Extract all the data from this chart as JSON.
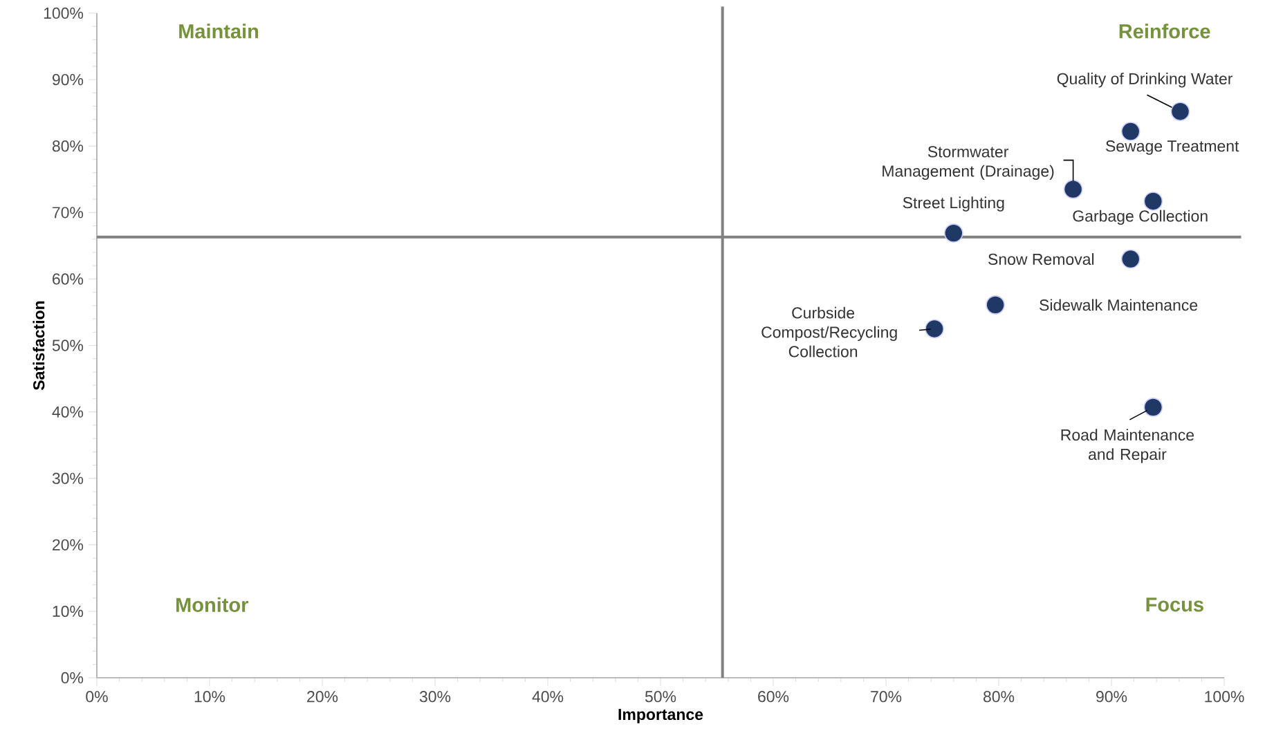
{
  "chart_data": {
    "type": "scatter",
    "xlabel": "Importance",
    "ylabel": "Satisfaction",
    "x": [
      96.1,
      91.7,
      86.6,
      93.7,
      76.0,
      91.7,
      79.7,
      74.3,
      93.7
    ],
    "values": [
      85.2,
      82.2,
      73.5,
      71.7,
      66.9,
      63.0,
      56.1,
      52.5,
      40.7
    ],
    "color": "#1f3864",
    "marker": "circle",
    "xlim": [
      0,
      100
    ],
    "ylim": [
      0,
      100
    ],
    "xticks": [
      {
        "value": 0,
        "label": "0%"
      },
      {
        "value": 10,
        "label": "10%"
      },
      {
        "value": 20,
        "label": "20%"
      },
      {
        "value": 30,
        "label": "30%"
      },
      {
        "value": 40,
        "label": "40%"
      },
      {
        "value": 50,
        "label": "50%"
      },
      {
        "value": 60,
        "label": "60%"
      },
      {
        "value": 70,
        "label": "70%"
      },
      {
        "value": 80,
        "label": "80%"
      },
      {
        "value": 90,
        "label": "90%"
      },
      {
        "value": 100,
        "label": "100%"
      }
    ],
    "yticks": [
      {
        "value": 0,
        "label": "0%"
      },
      {
        "value": 10,
        "label": "10%"
      },
      {
        "value": 20,
        "label": "20%"
      },
      {
        "value": 30,
        "label": "30%"
      },
      {
        "value": 40,
        "label": "40%"
      },
      {
        "value": 50,
        "label": "50%"
      },
      {
        "value": 60,
        "label": "60%"
      },
      {
        "value": 70,
        "label": "70%"
      },
      {
        "value": 80,
        "label": "80%"
      },
      {
        "value": 90,
        "label": "90%"
      },
      {
        "value": 100,
        "label": "100%"
      }
    ],
    "ref_lines": [
      {
        "axis": "x",
        "value": 55.5,
        "color": "#808080"
      },
      {
        "axis": "y",
        "value": 66.3,
        "color": "#808080"
      }
    ],
    "annotations": [
      "Maintain",
      "Reinforce",
      "Monitor",
      "Focus",
      {
        "text": "Quality of Drinking Water",
        "x": 96.1,
        "y": 85.2
      },
      {
        "text": "Sewage Treatment",
        "x": 91.7,
        "y": 82.2
      },
      {
        "text": "Stormwater Management (Drainage)",
        "x": 86.6,
        "y": 73.5
      },
      {
        "text": "Garbage Collection",
        "x": 93.7,
        "y": 71.7
      },
      {
        "text": "Street Lighting",
        "x": 76.0,
        "y": 66.9
      },
      {
        "text": "Snow Removal",
        "x": 91.7,
        "y": 63.0
      },
      {
        "text": "Sidewalk Maintenance",
        "x": 79.7,
        "y": 56.1
      },
      {
        "text": "Curbside Compost/Recycling Collection",
        "x": 74.3,
        "y": 52.5
      },
      {
        "text": "Road Maintenance and Repair",
        "x": 93.7,
        "y": 40.7
      }
    ]
  }
}
